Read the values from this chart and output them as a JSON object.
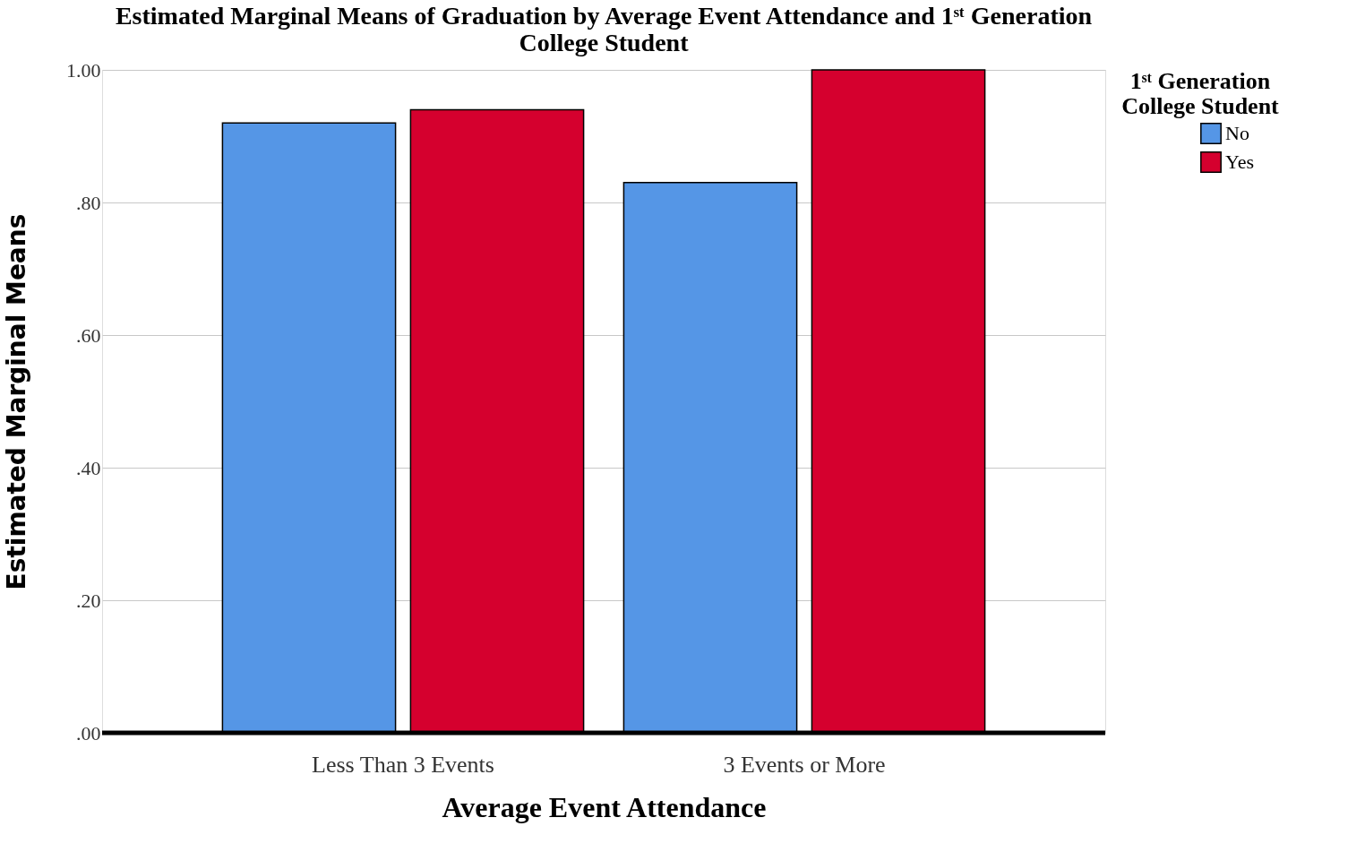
{
  "chart_data": {
    "type": "bar",
    "title": [
      "Estimated Marginal Means of Graduation by Average Event Attendance and 1ˢᵗ Generation",
      "College Student"
    ],
    "xlabel": "Average Event Attendance",
    "ylabel": "Estimated Marginal Means",
    "legend_title": [
      "1ˢᵗ Generation",
      "College Student"
    ],
    "categories": [
      "Less Than 3 Events",
      "3 Events or More"
    ],
    "series": [
      {
        "name": "No",
        "color": "#5596e6",
        "values": [
          0.92,
          0.83
        ]
      },
      {
        "name": "Yes",
        "color": "#d5002e",
        "values": [
          0.94,
          1.0
        ]
      }
    ],
    "ylim": [
      0,
      1.0
    ],
    "yticks": [
      {
        "value": 0,
        "label": ".00"
      },
      {
        "value": 0.2,
        "label": ".20"
      },
      {
        "value": 0.4,
        "label": ".40"
      },
      {
        "value": 0.6,
        "label": ".60"
      },
      {
        "value": 0.8,
        "label": ".80"
      },
      {
        "value": 1.0,
        "label": "1.00"
      }
    ],
    "grid": "y",
    "legend": "top right"
  }
}
